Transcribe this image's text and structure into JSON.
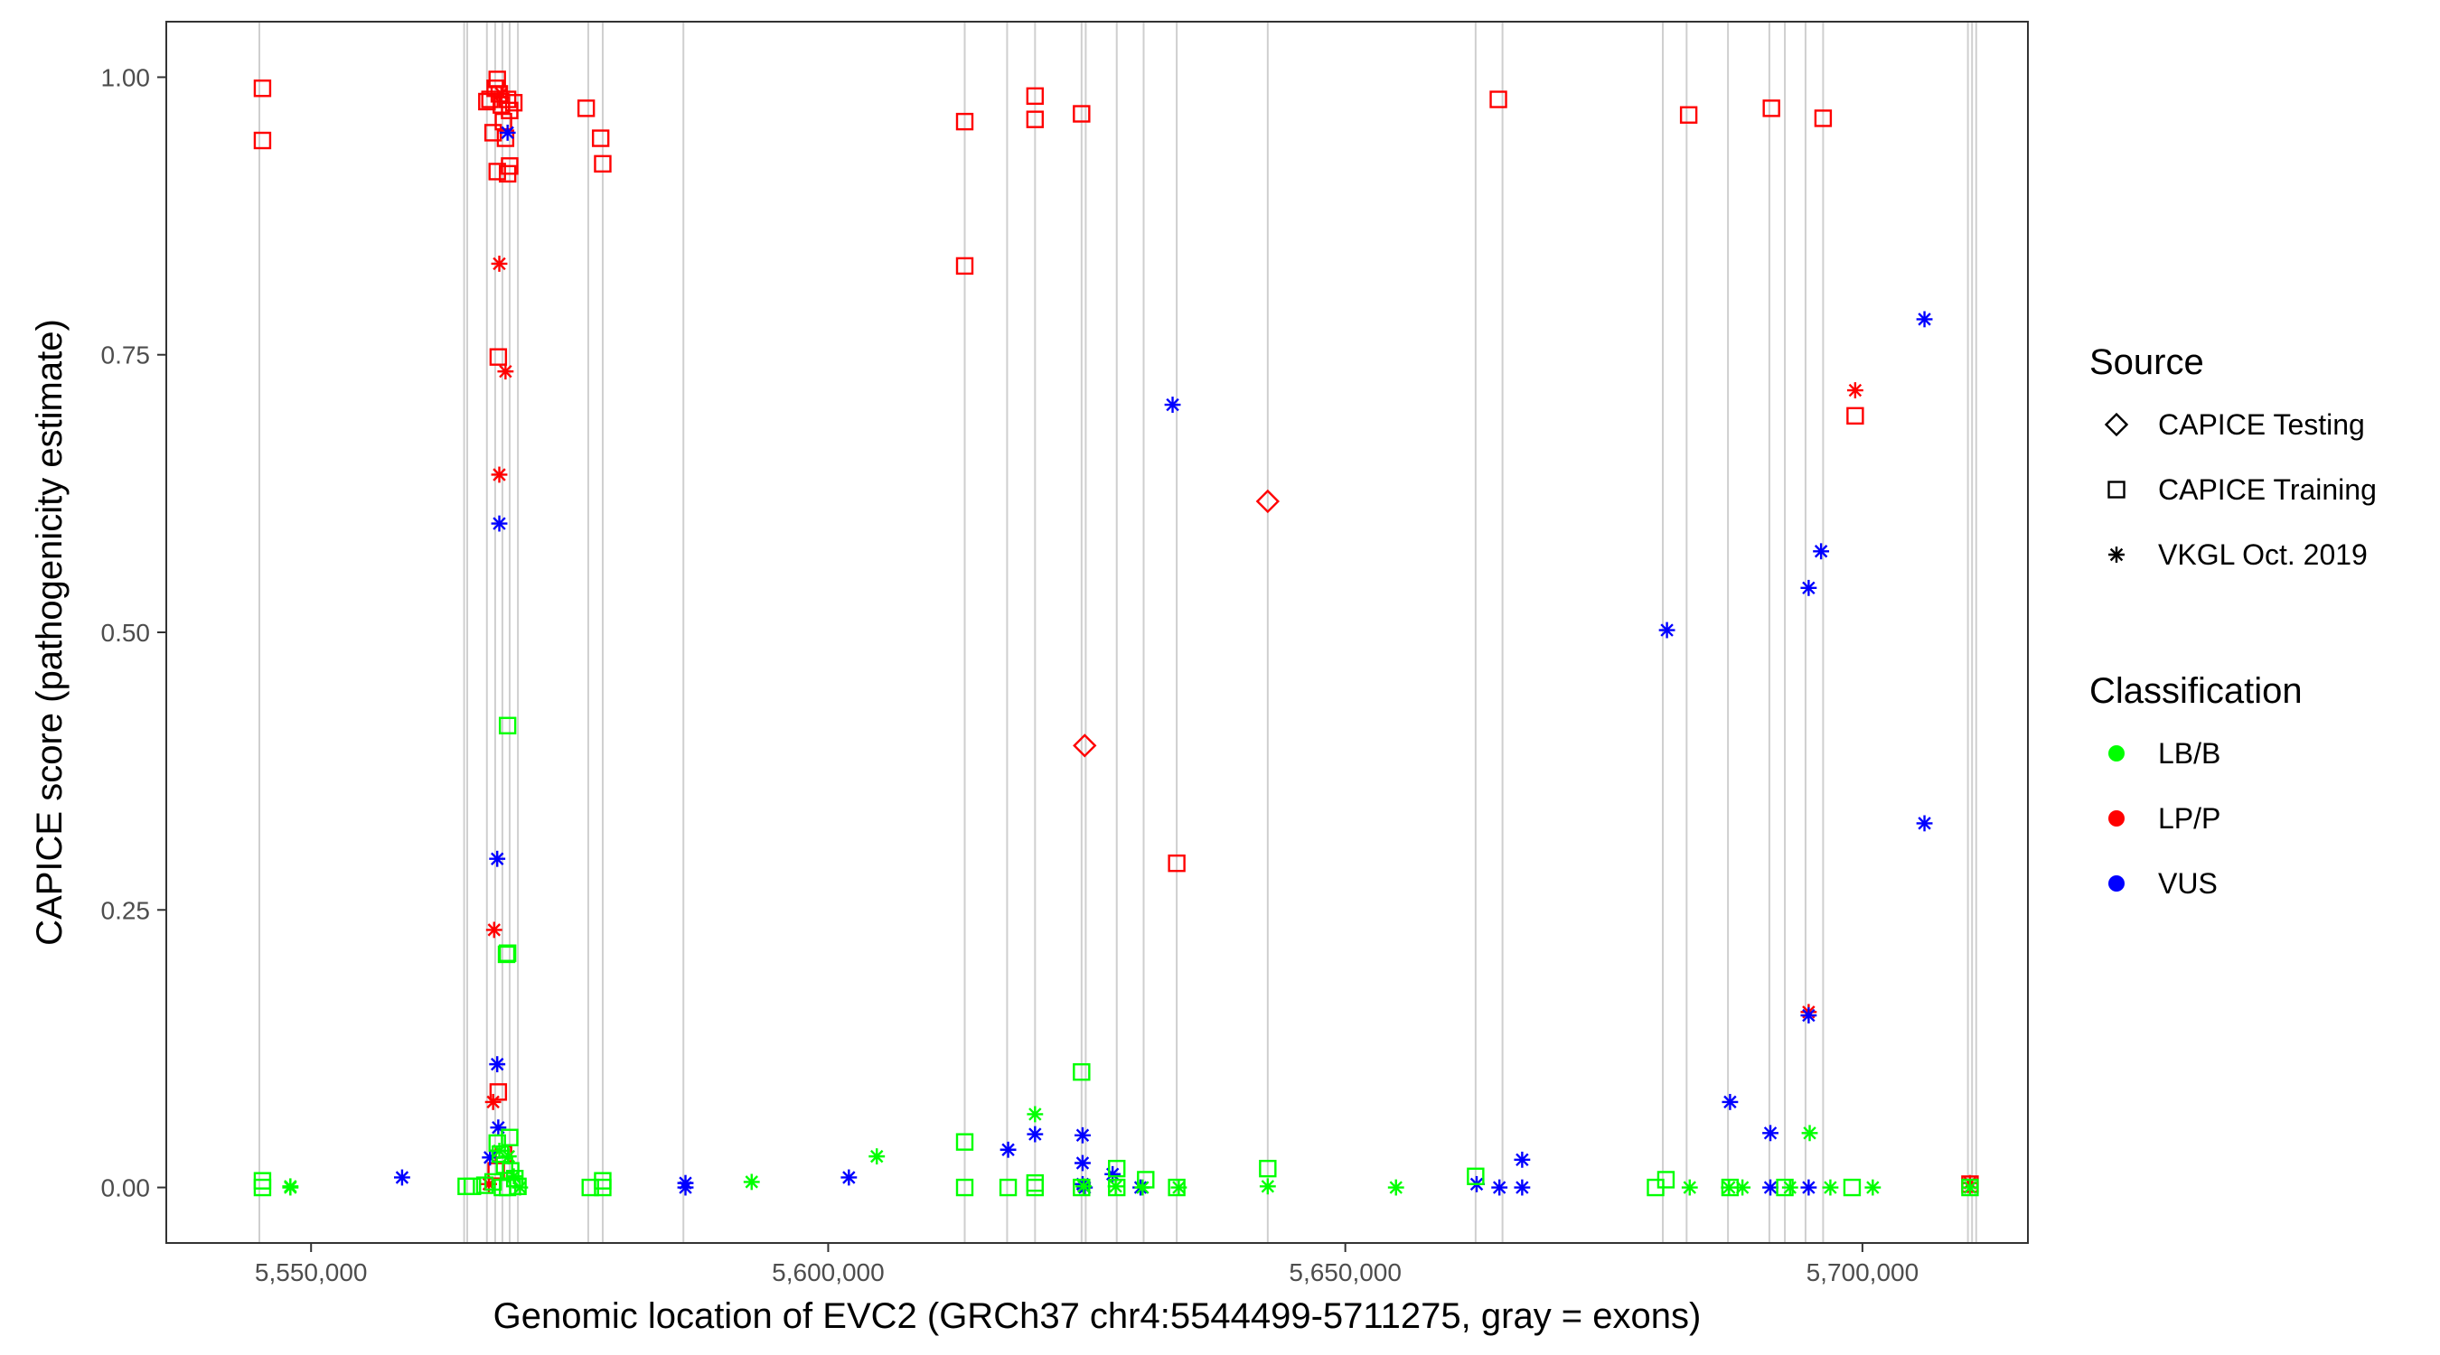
{
  "chart_data": {
    "type": "scatter",
    "title": "",
    "xlabel": "Genomic location of EVC2 (GRCh37 chr4:5544499-5711275, gray = exons)",
    "ylabel": "CAPICE score (pathogenicity estimate)",
    "xlim": [
      5536000,
      5716000
    ],
    "ylim": [
      -0.05,
      1.05
    ],
    "x_ticks": [
      5550000,
      5600000,
      5650000,
      5700000
    ],
    "x_tick_labels": [
      "5,550,000",
      "5,600,000",
      "5,650,000",
      "5,700,000"
    ],
    "y_ticks": [
      0.0,
      0.25,
      0.5,
      0.75,
      1.0
    ],
    "y_tick_labels": [
      "0.00",
      "0.25",
      "0.50",
      "0.75",
      "1.00"
    ],
    "grid": false,
    "exons_gray": [
      5545000,
      5564800,
      5565100,
      5567000,
      5567800,
      5568500,
      5569200,
      5570000,
      5576800,
      5578200,
      5586000,
      5613200,
      5617300,
      5620000,
      5624500,
      5624900,
      5627900,
      5630500,
      5633700,
      5642500,
      5662600,
      5665200,
      5680700,
      5683000,
      5687000,
      5691000,
      5692500,
      5694500,
      5696200,
      5710200,
      5710600,
      5711000
    ],
    "legend": {
      "placement": "right",
      "source_title": "Source",
      "source_items": [
        {
          "label": "CAPICE Testing",
          "shape": "diamond"
        },
        {
          "label": "CAPICE Training",
          "shape": "square"
        },
        {
          "label": "VKGL Oct. 2019",
          "shape": "asterisk"
        }
      ],
      "class_title": "Classification",
      "class_items": [
        {
          "label": "LB/B",
          "color": "#00ff00"
        },
        {
          "label": "LP/P",
          "color": "#ff0000"
        },
        {
          "label": "VUS",
          "color": "#0000ff"
        }
      ]
    },
    "series": [
      {
        "source": "CAPICE Training",
        "classification": "LP/P",
        "points": [
          [
            5545300,
            0.99
          ],
          [
            5545300,
            0.943
          ],
          [
            5567000,
            0.978
          ],
          [
            5567300,
            0.98
          ],
          [
            5567600,
            0.95
          ],
          [
            5567800,
            0.99
          ],
          [
            5568000,
            0.998
          ],
          [
            5568200,
            0.985
          ],
          [
            5568400,
            0.975
          ],
          [
            5568600,
            0.96
          ],
          [
            5568800,
            0.945
          ],
          [
            5569000,
            0.98
          ],
          [
            5569200,
            0.97
          ],
          [
            5569600,
            0.977
          ],
          [
            5568000,
            0.915
          ],
          [
            5569000,
            0.913
          ],
          [
            5569200,
            0.92
          ],
          [
            5568100,
            0.748
          ],
          [
            5568100,
            0.086
          ],
          [
            5576600,
            0.972
          ],
          [
            5578000,
            0.945
          ],
          [
            5578200,
            0.922
          ],
          [
            5613200,
            0.96
          ],
          [
            5613200,
            0.83
          ],
          [
            5620000,
            0.983
          ],
          [
            5620000,
            0.962
          ],
          [
            5624500,
            0.967
          ],
          [
            5633700,
            0.292
          ],
          [
            5664800,
            0.98
          ],
          [
            5683200,
            0.966
          ],
          [
            5691200,
            0.972
          ],
          [
            5696200,
            0.963
          ],
          [
            5699300,
            0.695
          ],
          [
            5710400,
            0.003
          ],
          [
            5568600,
            0.03
          ],
          [
            5567900,
            0.015
          ]
        ]
      },
      {
        "source": "VKGL Oct. 2019",
        "classification": "LP/P",
        "points": [
          [
            5568400,
            0.985
          ],
          [
            5568200,
            0.832
          ],
          [
            5568800,
            0.735
          ],
          [
            5568200,
            0.642
          ],
          [
            5567700,
            0.232
          ],
          [
            5567600,
            0.077
          ],
          [
            5567200,
            0.003
          ],
          [
            5699300,
            0.718
          ],
          [
            5694800,
            0.158
          ],
          [
            5710400,
            0.004
          ]
        ]
      },
      {
        "source": "CAPICE Testing",
        "classification": "LP/P",
        "points": [
          [
            5642500,
            0.618
          ],
          [
            5624800,
            0.398
          ]
        ]
      },
      {
        "source": "VKGL Oct. 2019",
        "classification": "VUS",
        "points": [
          [
            5569000,
            0.95
          ],
          [
            5568200,
            0.598
          ],
          [
            5568000,
            0.296
          ],
          [
            5568000,
            0.111
          ],
          [
            5568100,
            0.054
          ],
          [
            5567300,
            0.027
          ],
          [
            5558800,
            0.009
          ],
          [
            5586200,
            0.004
          ],
          [
            5586200,
            0.0
          ],
          [
            5602000,
            0.009
          ],
          [
            5617400,
            0.034
          ],
          [
            5620000,
            0.048
          ],
          [
            5624600,
            0.047
          ],
          [
            5624600,
            0.022
          ],
          [
            5624600,
            0.003
          ],
          [
            5624800,
            0.0
          ],
          [
            5627500,
            0.012
          ],
          [
            5630200,
            0.0
          ],
          [
            5633300,
            0.705
          ],
          [
            5662700,
            0.003
          ],
          [
            5664900,
            0.0
          ],
          [
            5667100,
            0.025
          ],
          [
            5667100,
            0.0
          ],
          [
            5681100,
            0.502
          ],
          [
            5687200,
            0.077
          ],
          [
            5691100,
            0.049
          ],
          [
            5691100,
            0.0
          ],
          [
            5694800,
            0.54
          ],
          [
            5696000,
            0.573
          ],
          [
            5694800,
            0.155
          ],
          [
            5694800,
            0.0
          ],
          [
            5706000,
            0.782
          ],
          [
            5706000,
            0.328
          ]
        ]
      },
      {
        "source": "VKGL Oct. 2019",
        "classification": "LB/B",
        "points": [
          [
            5548000,
            0.001
          ],
          [
            5548000,
            0.0
          ],
          [
            5568200,
            0.033
          ],
          [
            5569100,
            0.028
          ],
          [
            5569600,
            0.01
          ],
          [
            5570200,
            0.0
          ],
          [
            5592600,
            0.005
          ],
          [
            5604700,
            0.028
          ],
          [
            5620000,
            0.066
          ],
          [
            5624700,
            0.001
          ],
          [
            5627800,
            0.001
          ],
          [
            5630400,
            0.0
          ],
          [
            5633900,
            0.0
          ],
          [
            5642500,
            0.001
          ],
          [
            5654900,
            0.0
          ],
          [
            5683300,
            0.0
          ],
          [
            5687100,
            0.0
          ],
          [
            5688400,
            0.0
          ],
          [
            5693000,
            0.0
          ],
          [
            5694900,
            0.049
          ],
          [
            5696900,
            0.0
          ],
          [
            5701000,
            0.0
          ],
          [
            5710400,
            0.0
          ]
        ]
      },
      {
        "source": "CAPICE Training",
        "classification": "LB/B",
        "points": [
          [
            5545300,
            0.006
          ],
          [
            5545300,
            0.0
          ],
          [
            5565000,
            0.001
          ],
          [
            5565600,
            0.001
          ],
          [
            5566800,
            0.002
          ],
          [
            5567600,
            0.005
          ],
          [
            5568000,
            0.04
          ],
          [
            5568300,
            0.03
          ],
          [
            5568700,
            0.02
          ],
          [
            5569200,
            0.045
          ],
          [
            5569300,
            0.015
          ],
          [
            5569700,
            0.008
          ],
          [
            5569000,
            0.0
          ],
          [
            5568500,
            0.0
          ],
          [
            5570000,
            0.001
          ],
          [
            5569000,
            0.416
          ],
          [
            5569000,
            0.211
          ],
          [
            5568900,
            0.21
          ],
          [
            5577000,
            0.0
          ],
          [
            5578200,
            0.006
          ],
          [
            5578200,
            0.0
          ],
          [
            5613200,
            0.041
          ],
          [
            5613200,
            0.0
          ],
          [
            5617400,
            0.0
          ],
          [
            5620000,
            0.004
          ],
          [
            5620000,
            0.0
          ],
          [
            5624500,
            0.104
          ],
          [
            5624500,
            0.0
          ],
          [
            5627900,
            0.017
          ],
          [
            5627900,
            0.0
          ],
          [
            5630700,
            0.007
          ],
          [
            5633700,
            0.0
          ],
          [
            5642500,
            0.017
          ],
          [
            5662600,
            0.01
          ],
          [
            5680000,
            0.0
          ],
          [
            5681000,
            0.007
          ],
          [
            5687200,
            0.0
          ],
          [
            5692500,
            0.0
          ],
          [
            5699000,
            0.0
          ],
          [
            5710400,
            0.0
          ]
        ]
      }
    ]
  }
}
